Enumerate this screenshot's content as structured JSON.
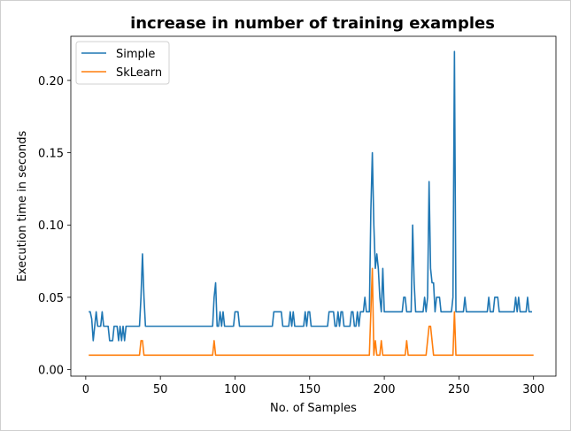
{
  "chart_data": {
    "type": "line",
    "title": "increase in number of training examples",
    "xlabel": "No. of Samples",
    "ylabel": "Execution time in seconds",
    "xlim": [
      -10,
      315
    ],
    "ylim": [
      -0.0045,
      0.2305
    ],
    "xticks": [
      0,
      50,
      100,
      150,
      200,
      250,
      300
    ],
    "xtick_labels": [
      "0",
      "50",
      "100",
      "150",
      "200",
      "250",
      "300"
    ],
    "yticks": [
      0.0,
      0.05,
      0.1,
      0.15,
      0.2
    ],
    "ytick_labels": [
      "0.00",
      "0.05",
      "0.10",
      "0.15",
      "0.20"
    ],
    "grid": false,
    "legend_loc": "upper left",
    "series": [
      {
        "name": "Simple",
        "color": "#1f77b4",
        "points": [
          [
            2,
            0.04
          ],
          [
            3,
            0.04
          ],
          [
            4,
            0.035
          ],
          [
            5,
            0.02
          ],
          [
            6,
            0.03
          ],
          [
            7,
            0.04
          ],
          [
            8,
            0.03
          ],
          [
            9,
            0.03
          ],
          [
            10,
            0.03
          ],
          [
            11,
            0.04
          ],
          [
            12,
            0.03
          ],
          [
            13,
            0.03
          ],
          [
            14,
            0.03
          ],
          [
            15,
            0.03
          ],
          [
            16,
            0.02
          ],
          [
            17,
            0.02
          ],
          [
            18,
            0.02
          ],
          [
            19,
            0.03
          ],
          [
            20,
            0.03
          ],
          [
            21,
            0.03
          ],
          [
            22,
            0.02
          ],
          [
            23,
            0.03
          ],
          [
            24,
            0.02
          ],
          [
            25,
            0.03
          ],
          [
            26,
            0.02
          ],
          [
            27,
            0.03
          ],
          [
            28,
            0.03
          ],
          [
            29,
            0.03
          ],
          [
            30,
            0.03
          ],
          [
            36,
            0.03
          ],
          [
            37,
            0.05
          ],
          [
            38,
            0.08
          ],
          [
            39,
            0.05
          ],
          [
            40,
            0.03
          ],
          [
            41,
            0.03
          ],
          [
            85,
            0.03
          ],
          [
            86,
            0.05
          ],
          [
            87,
            0.06
          ],
          [
            88,
            0.03
          ],
          [
            89,
            0.03
          ],
          [
            90,
            0.04
          ],
          [
            91,
            0.03
          ],
          [
            92,
            0.04
          ],
          [
            93,
            0.03
          ],
          [
            94,
            0.03
          ],
          [
            95,
            0.03
          ],
          [
            96,
            0.03
          ],
          [
            97,
            0.03
          ],
          [
            98,
            0.03
          ],
          [
            99,
            0.03
          ],
          [
            100,
            0.04
          ],
          [
            101,
            0.04
          ],
          [
            102,
            0.04
          ],
          [
            103,
            0.03
          ],
          [
            104,
            0.03
          ],
          [
            125,
            0.03
          ],
          [
            126,
            0.04
          ],
          [
            127,
            0.04
          ],
          [
            128,
            0.04
          ],
          [
            129,
            0.04
          ],
          [
            130,
            0.04
          ],
          [
            131,
            0.04
          ],
          [
            132,
            0.03
          ],
          [
            133,
            0.03
          ],
          [
            134,
            0.03
          ],
          [
            135,
            0.03
          ],
          [
            136,
            0.03
          ],
          [
            137,
            0.04
          ],
          [
            138,
            0.03
          ],
          [
            139,
            0.04
          ],
          [
            140,
            0.03
          ],
          [
            141,
            0.03
          ],
          [
            142,
            0.03
          ],
          [
            143,
            0.03
          ],
          [
            144,
            0.03
          ],
          [
            145,
            0.03
          ],
          [
            146,
            0.03
          ],
          [
            147,
            0.04
          ],
          [
            148,
            0.03
          ],
          [
            149,
            0.04
          ],
          [
            150,
            0.04
          ],
          [
            151,
            0.03
          ],
          [
            152,
            0.03
          ],
          [
            153,
            0.03
          ],
          [
            162,
            0.03
          ],
          [
            163,
            0.04
          ],
          [
            164,
            0.04
          ],
          [
            165,
            0.04
          ],
          [
            166,
            0.04
          ],
          [
            167,
            0.03
          ],
          [
            168,
            0.03
          ],
          [
            169,
            0.04
          ],
          [
            170,
            0.03
          ],
          [
            171,
            0.04
          ],
          [
            172,
            0.04
          ],
          [
            173,
            0.03
          ],
          [
            174,
            0.03
          ],
          [
            175,
            0.03
          ],
          [
            176,
            0.03
          ],
          [
            177,
            0.03
          ],
          [
            178,
            0.04
          ],
          [
            179,
            0.04
          ],
          [
            180,
            0.03
          ],
          [
            181,
            0.03
          ],
          [
            182,
            0.04
          ],
          [
            183,
            0.03
          ],
          [
            184,
            0.04
          ],
          [
            185,
            0.04
          ],
          [
            186,
            0.04
          ],
          [
            187,
            0.05
          ],
          [
            188,
            0.04
          ],
          [
            189,
            0.04
          ],
          [
            190,
            0.04
          ],
          [
            191,
            0.11
          ],
          [
            192,
            0.15
          ],
          [
            193,
            0.1
          ],
          [
            194,
            0.07
          ],
          [
            195,
            0.08
          ],
          [
            196,
            0.07
          ],
          [
            197,
            0.05
          ],
          [
            198,
            0.04
          ],
          [
            199,
            0.07
          ],
          [
            200,
            0.04
          ],
          [
            201,
            0.04
          ],
          [
            212,
            0.04
          ],
          [
            213,
            0.05
          ],
          [
            214,
            0.05
          ],
          [
            215,
            0.04
          ],
          [
            216,
            0.04
          ],
          [
            217,
            0.04
          ],
          [
            218,
            0.04
          ],
          [
            219,
            0.1
          ],
          [
            220,
            0.06
          ],
          [
            221,
            0.04
          ],
          [
            222,
            0.04
          ],
          [
            223,
            0.04
          ],
          [
            224,
            0.04
          ],
          [
            225,
            0.04
          ],
          [
            226,
            0.04
          ],
          [
            227,
            0.05
          ],
          [
            228,
            0.04
          ],
          [
            229,
            0.05
          ],
          [
            230,
            0.13
          ],
          [
            231,
            0.07
          ],
          [
            232,
            0.06
          ],
          [
            233,
            0.06
          ],
          [
            234,
            0.04
          ],
          [
            235,
            0.05
          ],
          [
            236,
            0.05
          ],
          [
            237,
            0.05
          ],
          [
            238,
            0.04
          ],
          [
            239,
            0.04
          ],
          [
            240,
            0.04
          ],
          [
            241,
            0.04
          ],
          [
            242,
            0.04
          ],
          [
            243,
            0.04
          ],
          [
            244,
            0.04
          ],
          [
            245,
            0.04
          ],
          [
            246,
            0.05
          ],
          [
            247,
            0.22
          ],
          [
            248,
            0.04
          ],
          [
            249,
            0.04
          ],
          [
            250,
            0.04
          ],
          [
            251,
            0.04
          ],
          [
            252,
            0.04
          ],
          [
            253,
            0.04
          ],
          [
            254,
            0.05
          ],
          [
            255,
            0.04
          ],
          [
            269,
            0.04
          ],
          [
            270,
            0.05
          ],
          [
            271,
            0.04
          ],
          [
            272,
            0.04
          ],
          [
            273,
            0.04
          ],
          [
            274,
            0.05
          ],
          [
            275,
            0.05
          ],
          [
            276,
            0.05
          ],
          [
            277,
            0.04
          ],
          [
            278,
            0.04
          ],
          [
            287,
            0.04
          ],
          [
            288,
            0.05
          ],
          [
            289,
            0.04
          ],
          [
            290,
            0.05
          ],
          [
            291,
            0.04
          ],
          [
            292,
            0.04
          ],
          [
            293,
            0.04
          ],
          [
            294,
            0.04
          ],
          [
            295,
            0.04
          ],
          [
            296,
            0.05
          ],
          [
            297,
            0.04
          ],
          [
            298,
            0.04
          ],
          [
            299,
            0.04
          ]
        ]
      },
      {
        "name": "SkLearn",
        "color": "#ff7f0e",
        "points": [
          [
            2,
            0.01
          ],
          [
            36,
            0.01
          ],
          [
            37,
            0.02
          ],
          [
            38,
            0.02
          ],
          [
            39,
            0.01
          ],
          [
            85,
            0.01
          ],
          [
            86,
            0.02
          ],
          [
            87,
            0.01
          ],
          [
            190,
            0.01
          ],
          [
            191,
            0.04
          ],
          [
            192,
            0.07
          ],
          [
            193,
            0.01
          ],
          [
            194,
            0.02
          ],
          [
            195,
            0.01
          ],
          [
            196,
            0.01
          ],
          [
            197,
            0.01
          ],
          [
            198,
            0.02
          ],
          [
            199,
            0.01
          ],
          [
            214,
            0.01
          ],
          [
            215,
            0.02
          ],
          [
            216,
            0.01
          ],
          [
            228,
            0.01
          ],
          [
            229,
            0.02
          ],
          [
            230,
            0.03
          ],
          [
            231,
            0.03
          ],
          [
            232,
            0.02
          ],
          [
            233,
            0.01
          ],
          [
            246,
            0.01
          ],
          [
            247,
            0.04
          ],
          [
            248,
            0.01
          ],
          [
            300,
            0.01
          ]
        ]
      }
    ]
  }
}
